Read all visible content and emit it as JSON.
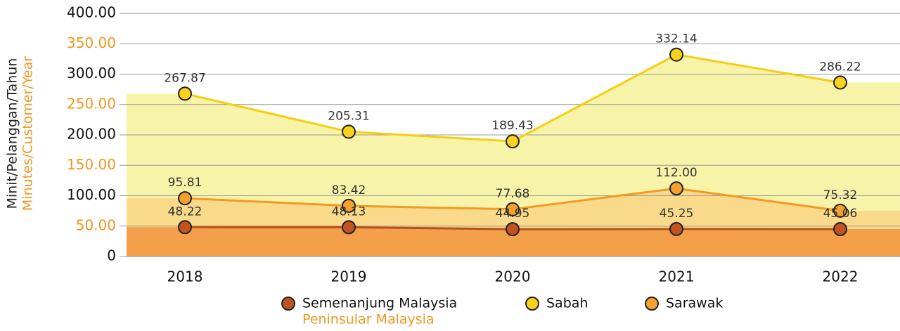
{
  "chart_data": {
    "type": "area",
    "y_label": "Minit/Pelanggan/Tahun",
    "y_label_en": "Minutes/Customer/Year",
    "categories": [
      "2018",
      "2019",
      "2020",
      "2021",
      "2022"
    ],
    "ylim": [
      0,
      400
    ],
    "yticks": [
      0,
      {
        "value": 50,
        "label": "50.00"
      },
      {
        "value": 100,
        "label": "100.00"
      },
      {
        "value": 150,
        "label": "150.00"
      },
      {
        "value": 200,
        "label": "200.00"
      },
      {
        "value": 250,
        "label": "250.00"
      },
      {
        "value": 300,
        "label": "300.00"
      },
      {
        "value": 350,
        "label": "350.00"
      },
      {
        "value": 400,
        "label": "400.00"
      }
    ],
    "grid": true,
    "series": [
      {
        "name": "Sabah",
        "color": "#f5cf12",
        "area_color": "#f7f3a8",
        "marker_color": "#f9d21e",
        "values": [
          267.87,
          205.31,
          189.43,
          332.14,
          286.22
        ],
        "value_labels": [
          "267.87",
          "205.31",
          "189.43",
          "332.14",
          "286.22"
        ]
      },
      {
        "name": "Sarawak",
        "color": "#f29a22",
        "area_color": "#f9d98a",
        "marker_color": "#f4a12e",
        "values": [
          95.81,
          83.42,
          77.68,
          112.0,
          75.32
        ],
        "value_labels": [
          "95.81",
          "83.42",
          "77.68",
          "112.00",
          "75.32"
        ]
      },
      {
        "name": "Semenanjung Malaysia",
        "name_en": "Peninsular Malaysia",
        "color": "#b8501a",
        "area_color": "#f4a04a",
        "marker_color": "#c0531f",
        "values": [
          48.22,
          48.13,
          44.95,
          45.25,
          45.06
        ],
        "value_labels": [
          "48.22",
          "48.13",
          "44.95",
          "45.25",
          "45.06"
        ]
      }
    ]
  }
}
